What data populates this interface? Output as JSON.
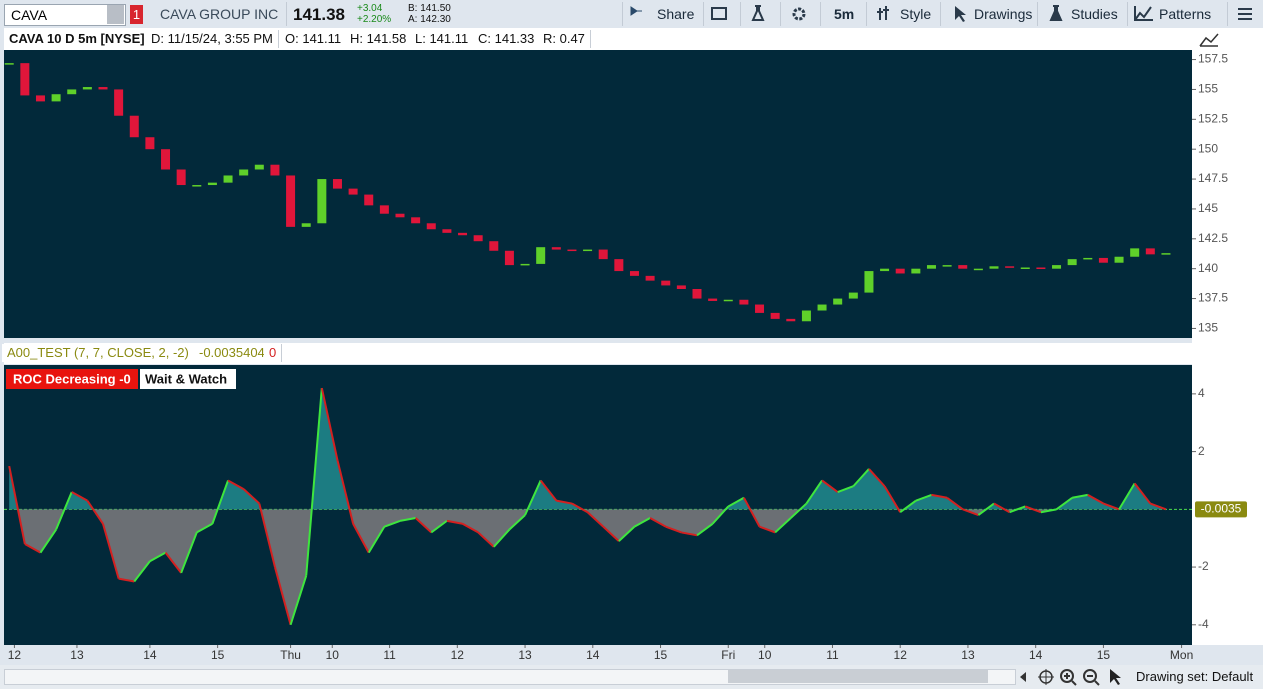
{
  "toolbar": {
    "symbol": "CAVA",
    "link": "1",
    "company": "CAVA GROUP INC",
    "last": "141.38",
    "change": "+3.04",
    "change_pct": "+2.20%",
    "bid": "B: 141.50",
    "ask": "A: 142.30",
    "buttons": [
      "Share",
      "5m",
      "Style",
      "Drawings",
      "Studies",
      "Patterns"
    ]
  },
  "info_bar": [
    "CAVA 10 D 5m [NYSE]",
    "D: 11/15/24, 3:55 PM",
    "O: 141.11",
    "H: 141.58",
    "L: 141.11",
    "C: 141.33",
    "R: 0.47"
  ],
  "study_header": {
    "name": "A00_TEST (7, 7, CLOSE, 2, -2)",
    "value": "-0.0035404",
    "signal": "0"
  },
  "study_labels": [
    "ROC Decreasing -0",
    "Wait & Watch"
  ],
  "footer": {
    "drawing_set": "Drawing set: Default"
  },
  "chart_data": [
    {
      "type": "candlestick",
      "color_up": "#5fd02a",
      "color_down": "#e0163a",
      "x": [
        0,
        3,
        6,
        9,
        12,
        15,
        18,
        21,
        24,
        27,
        30,
        33,
        36,
        39,
        42,
        45,
        48,
        51,
        54,
        57,
        60,
        63,
        66,
        69,
        72,
        75,
        78,
        81,
        84,
        87,
        90,
        93,
        96,
        99,
        102,
        105,
        108,
        111,
        114,
        117,
        120,
        123,
        126,
        129,
        132,
        135,
        138,
        141,
        144,
        147,
        150,
        153,
        156,
        159,
        162,
        165,
        168,
        171,
        174,
        177,
        180,
        183,
        186,
        189,
        192,
        195,
        198,
        201,
        204,
        207,
        210,
        213,
        216,
        219,
        222
      ],
      "values": [
        157.2,
        154.5,
        154.0,
        154.6,
        155.0,
        155.2,
        155.0,
        152.8,
        151.0,
        150.0,
        148.3,
        147.0,
        147.0,
        147.2,
        147.8,
        148.3,
        148.7,
        147.8,
        143.5,
        143.8,
        147.5,
        146.7,
        146.2,
        145.3,
        144.6,
        144.3,
        143.8,
        143.3,
        143.0,
        142.8,
        142.3,
        141.5,
        140.3,
        140.4,
        141.8,
        141.6,
        141.5,
        141.6,
        140.8,
        139.8,
        139.4,
        139.0,
        138.6,
        138.3,
        137.5,
        137.3,
        137.4,
        137.0,
        136.3,
        135.8,
        135.6,
        136.5,
        137.0,
        137.5,
        138.0,
        139.8,
        140.0,
        139.6,
        140.0,
        140.3,
        140.3,
        140.0,
        140.0,
        140.2,
        140.1,
        140.1,
        140.0,
        140.3,
        140.8,
        140.9,
        140.5,
        141.0,
        141.7,
        141.2,
        141.3
      ],
      "xlim": [
        -1,
        227
      ],
      "ylim": [
        134.2,
        158.3
      ],
      "yticks": [
        135,
        137.5,
        140,
        142.5,
        145,
        147.5,
        150,
        152.5,
        155,
        157.5
      ]
    },
    {
      "type": "area",
      "color_line_up": "#3ee63e",
      "color_line_down": "#d42020",
      "color_area_pos": "#1c7c82",
      "color_area_neg": "#6b6f74",
      "x": [
        0,
        3,
        6,
        9,
        12,
        15,
        18,
        21,
        24,
        27,
        30,
        33,
        36,
        39,
        42,
        45,
        48,
        51,
        54,
        57,
        60,
        63,
        66,
        69,
        72,
        75,
        78,
        81,
        84,
        87,
        90,
        93,
        96,
        99,
        102,
        105,
        108,
        111,
        114,
        117,
        120,
        123,
        126,
        129,
        132,
        135,
        138,
        141,
        144,
        147,
        150,
        153,
        156,
        159,
        162,
        165,
        168,
        171,
        174,
        177,
        180,
        183,
        186,
        189,
        192,
        195,
        198,
        201,
        204,
        207,
        210,
        213,
        216,
        219,
        222
      ],
      "values": [
        1.5,
        -1.2,
        -1.5,
        -0.7,
        0.6,
        0.3,
        -0.5,
        -2.4,
        -2.5,
        -1.8,
        -1.5,
        -2.2,
        -0.8,
        -0.5,
        1.0,
        0.7,
        0.2,
        -2.0,
        -4.0,
        -2.3,
        4.2,
        1.7,
        -0.5,
        -1.5,
        -0.6,
        -0.4,
        -0.3,
        -0.8,
        -0.4,
        -0.5,
        -0.8,
        -1.3,
        -0.7,
        -0.2,
        1.0,
        0.3,
        0.2,
        -0.1,
        -0.6,
        -1.1,
        -0.6,
        -0.3,
        -0.6,
        -0.8,
        -0.9,
        -0.5,
        0.1,
        0.4,
        -0.6,
        -0.8,
        -0.3,
        0.2,
        1.0,
        0.6,
        0.8,
        1.4,
        0.8,
        -0.1,
        0.3,
        0.5,
        0.4,
        0.0,
        -0.2,
        0.2,
        -0.1,
        0.1,
        -0.1,
        0.0,
        0.4,
        0.5,
        0.2,
        0.0,
        0.9,
        0.2,
        0.0
      ],
      "current_value": -0.0035,
      "xlim": [
        -1,
        227
      ],
      "ylim": [
        -4.7,
        5.0
      ],
      "yticks": [
        -4,
        -2,
        2,
        4
      ],
      "xticks": [
        {
          "value": 1,
          "label": "12"
        },
        {
          "value": 13,
          "label": "13"
        },
        {
          "value": 27,
          "label": "14"
        },
        {
          "value": 40,
          "label": "15"
        },
        {
          "value": 54,
          "label": "Thu"
        },
        {
          "value": 62,
          "label": "10"
        },
        {
          "value": 73,
          "label": "11"
        },
        {
          "value": 86,
          "label": "12"
        },
        {
          "value": 99,
          "label": "13"
        },
        {
          "value": 112,
          "label": "14"
        },
        {
          "value": 125,
          "label": "15"
        },
        {
          "value": 138,
          "label": "Fri"
        },
        {
          "value": 145,
          "label": "10"
        },
        {
          "value": 158,
          "label": "11"
        },
        {
          "value": 171,
          "label": "12"
        },
        {
          "value": 184,
          "label": "13"
        },
        {
          "value": 197,
          "label": "14"
        },
        {
          "value": 210,
          "label": "15"
        },
        {
          "value": 225,
          "label": "Mon"
        }
      ]
    }
  ]
}
